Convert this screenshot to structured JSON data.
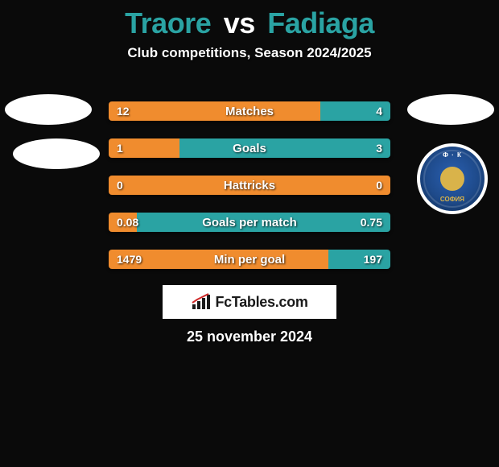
{
  "background_color": "#0a0a0a",
  "title": {
    "left": "Traore",
    "vs": "vs",
    "right": "Fadiaga",
    "left_color": "#2aa3a3",
    "vs_color": "#ffffff",
    "right_color": "#2aa3a3",
    "fontsize": 36
  },
  "subtitle": "Club competitions, Season 2024/2025",
  "colors": {
    "left_bar": "#f08c2e",
    "right_bar": "#2aa3a3",
    "neutral_bar": "#f08c2e"
  },
  "left_badge_text": "",
  "right_badge": {
    "outer_color": "#1e4a8a",
    "accent_color": "#d9b34a",
    "top_text": "Ф · К",
    "bottom_text": "СОФИЯ"
  },
  "stats": [
    {
      "label": "Matches",
      "left_val": "12",
      "right_val": "4",
      "left_pct": 75,
      "right_pct": 25
    },
    {
      "label": "Goals",
      "left_val": "1",
      "right_val": "3",
      "left_pct": 25,
      "right_pct": 75
    },
    {
      "label": "Hattricks",
      "left_val": "0",
      "right_val": "0",
      "left_pct": 100,
      "right_pct": 0
    },
    {
      "label": "Goals per match",
      "left_val": "0.08",
      "right_val": "0.75",
      "left_pct": 10,
      "right_pct": 90
    },
    {
      "label": "Min per goal",
      "left_val": "1479",
      "right_val": "197",
      "left_pct": 78,
      "right_pct": 22
    }
  ],
  "logo_text": "FcTables.com",
  "date": "25 november 2024"
}
